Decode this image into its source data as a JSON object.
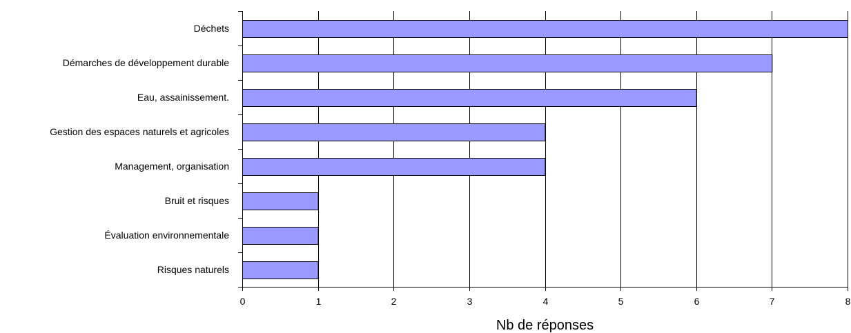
{
  "chart_data": {
    "type": "bar",
    "orientation": "horizontal",
    "categories": [
      "Déchets",
      "Démarches de développement durable",
      "Eau, assainissement.",
      "Gestion des espaces naturels et agricoles",
      "Management, organisation",
      "Bruit et risques",
      "Évaluation environnementale",
      "Risques naturels"
    ],
    "values": [
      8,
      7,
      6,
      4,
      4,
      1,
      1,
      1
    ],
    "xlabel": "Nb de réponses",
    "ylabel": "",
    "title": "",
    "xlim": [
      0,
      8
    ],
    "x_ticks": [
      "0",
      "1",
      "2",
      "3",
      "4",
      "5",
      "6",
      "7",
      "8"
    ],
    "grid": "vertical",
    "legend": "none",
    "bar_color": "#9999ff",
    "bar_edge_color": "#000000"
  }
}
